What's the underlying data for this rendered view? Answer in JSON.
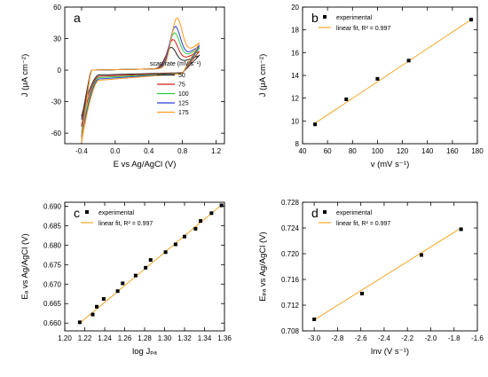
{
  "chart_data": [
    {
      "type": "line",
      "panel_label": "a",
      "xlabel": "E vs Ag/AgCl (V)",
      "ylabel": "J (μA cm⁻²)",
      "xlim": [
        -0.6,
        1.3
      ],
      "ylim": [
        -70,
        60
      ],
      "xticks": [
        "-0.4",
        "0.0",
        "0.4",
        "0.8",
        "1.2"
      ],
      "yticks": [
        "-60",
        "-30",
        "0",
        "30",
        "60"
      ],
      "legend_title": "scan rate (mV s⁻¹)",
      "legend_position": "lower-right",
      "series": [
        {
          "name": "50",
          "color": "#222222",
          "E_start": -0.4,
          "E_end": 1.0,
          "J_start_cathodic": -47,
          "J_anodic_peak": 24,
          "E_peak": 0.66,
          "J_end": 20
        },
        {
          "name": "75",
          "color": "#d81b1b",
          "E_start": -0.4,
          "E_end": 1.0,
          "J_start_cathodic": -54,
          "J_anodic_peak": 30,
          "E_peak": 0.68,
          "J_end": 24
        },
        {
          "name": "100",
          "color": "#2ecc40",
          "E_start": -0.4,
          "E_end": 1.0,
          "J_start_cathodic": -60,
          "J_anodic_peak": 35,
          "E_peak": 0.7,
          "J_end": 27
        },
        {
          "name": "125",
          "color": "#2a3fd6",
          "E_start": -0.4,
          "E_end": 1.0,
          "J_start_cathodic": -63,
          "J_anodic_peak": 40,
          "E_peak": 0.71,
          "J_end": 29
        },
        {
          "name": "175",
          "color": "#ff9c1a",
          "E_start": -0.4,
          "E_end": 1.0,
          "J_start_cathodic": -66,
          "J_anodic_peak": 46,
          "E_peak": 0.73,
          "J_end": 32
        }
      ]
    },
    {
      "type": "scatter",
      "panel_label": "b",
      "xlabel": "v (mV s⁻¹)",
      "ylabel": "J (μA cm⁻²)",
      "xlim": [
        40,
        180
      ],
      "ylim": [
        8,
        20
      ],
      "xticks": [
        "40",
        "60",
        "80",
        "100",
        "120",
        "140",
        "160",
        "180"
      ],
      "yticks": [
        "8",
        "10",
        "12",
        "14",
        "16",
        "18",
        "20"
      ],
      "legend": [
        "experimental",
        "linear fit, R² = 0.997"
      ],
      "legend_position": "top-left",
      "fit_color": "#f5a623",
      "points": [
        [
          50,
          9.7
        ],
        [
          75,
          11.9
        ],
        [
          100,
          13.7
        ],
        [
          125,
          15.3
        ],
        [
          175,
          18.9
        ]
      ],
      "fit": [
        [
          50,
          9.8
        ],
        [
          175,
          18.9
        ]
      ]
    },
    {
      "type": "scatter",
      "panel_label": "c",
      "xlabel": "log Jₚₐ",
      "ylabel": "Eₐ vs Ag/AgCl (V)",
      "xlim": [
        1.2,
        1.36
      ],
      "ylim": [
        0.658,
        0.691
      ],
      "xticks": [
        "1.20",
        "1.22",
        "1.24",
        "1.26",
        "1.28",
        "1.30",
        "1.32",
        "1.34",
        "1.36"
      ],
      "yticks": [
        "0.660",
        "0.665",
        "0.670",
        "0.675",
        "0.680",
        "0.685",
        "0.690"
      ],
      "legend": [
        "experimental",
        "linear fit, R² = 0.997"
      ],
      "legend_position": "top-left",
      "fit_color": "#f5a623",
      "points": [
        [
          1.215,
          0.6602
        ],
        [
          1.228,
          0.6622
        ],
        [
          1.232,
          0.6642
        ],
        [
          1.239,
          0.6662
        ],
        [
          1.253,
          0.6682
        ],
        [
          1.258,
          0.6702
        ],
        [
          1.271,
          0.6722
        ],
        [
          1.281,
          0.6742
        ],
        [
          1.286,
          0.6762
        ],
        [
          1.301,
          0.6782
        ],
        [
          1.311,
          0.6802
        ],
        [
          1.32,
          0.6822
        ],
        [
          1.331,
          0.6842
        ],
        [
          1.336,
          0.6862
        ],
        [
          1.347,
          0.6882
        ],
        [
          1.357,
          0.6902
        ]
      ],
      "fit": [
        [
          1.215,
          0.66
        ],
        [
          1.357,
          0.6903
        ]
      ]
    },
    {
      "type": "scatter",
      "panel_label": "d",
      "xlabel": "lnv (V s⁻¹)",
      "ylabel": "Eₚₐ vs Ag/AgCl (V)",
      "xlim": [
        -3.1,
        -1.6
      ],
      "ylim": [
        0.708,
        0.728
      ],
      "xticks": [
        "-3.0",
        "-2.8",
        "-2.6",
        "-2.4",
        "-2.2",
        "-2.0",
        "-1.8",
        "-1.6"
      ],
      "yticks": [
        "0.708",
        "0.712",
        "0.716",
        "0.720",
        "0.724",
        "0.728"
      ],
      "legend": [
        "experimental",
        "linear fit, R² = 0.997"
      ],
      "legend_position": "top-left",
      "fit_color": "#f5a623",
      "points": [
        [
          -3.0,
          0.7098
        ],
        [
          -2.59,
          0.7138
        ],
        [
          -2.08,
          0.7198
        ],
        [
          -1.74,
          0.7238
        ]
      ],
      "fit": [
        [
          -3.0,
          0.7097
        ],
        [
          -1.74,
          0.724
        ]
      ]
    }
  ]
}
